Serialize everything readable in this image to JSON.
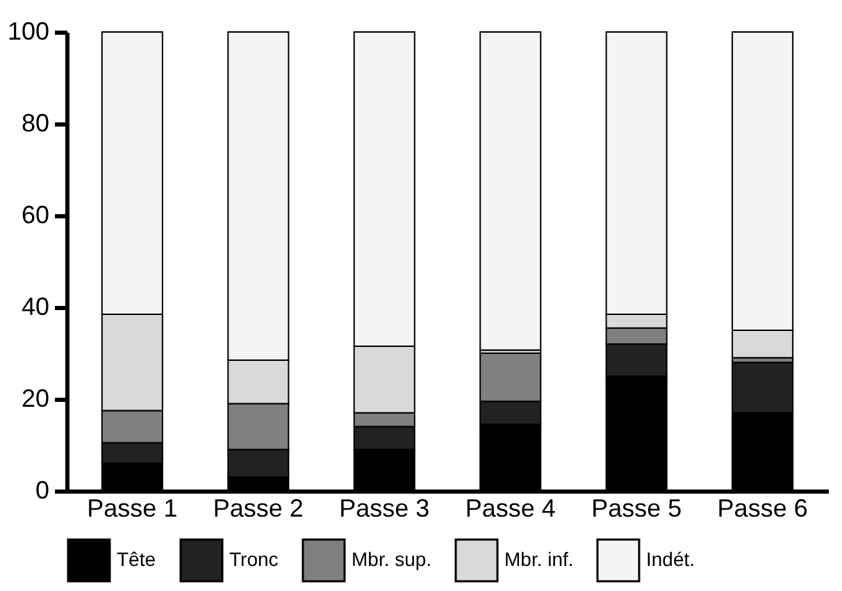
{
  "chart_data": {
    "type": "bar",
    "stacked": true,
    "categories": [
      "Passe 1",
      "Passe 2",
      "Passe 3",
      "Passe 4",
      "Passe 5",
      "Passe 6"
    ],
    "series": [
      {
        "name": "Tête",
        "color": "#000000",
        "values": [
          6,
          3,
          9,
          14.5,
          25,
          17
        ]
      },
      {
        "name": "Tronc",
        "color": "#222222",
        "values": [
          4.5,
          6,
          5,
          5,
          7,
          11
        ]
      },
      {
        "name": "Mbr. sup.",
        "color": "#808080",
        "values": [
          7,
          10,
          3,
          10.5,
          3.5,
          1
        ]
      },
      {
        "name": "Mbr. inf.",
        "color": "#d9d9d9",
        "values": [
          21,
          9.5,
          14.5,
          0.7,
          3,
          6
        ]
      },
      {
        "name": "Indét.",
        "color": "#f4f4f4",
        "values": [
          61.5,
          71.5,
          68.5,
          69.3,
          61.5,
          65
        ]
      }
    ],
    "ylim": [
      0,
      100
    ],
    "yticks": [
      0,
      20,
      40,
      60,
      80,
      100
    ],
    "grid": false,
    "legend": "bottom"
  }
}
